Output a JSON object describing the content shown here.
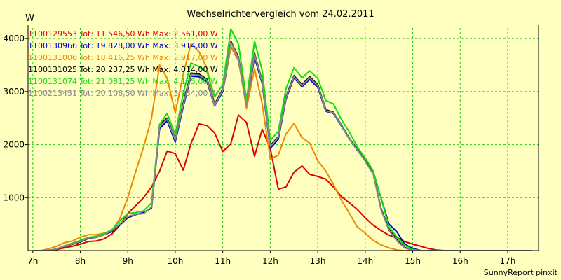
{
  "chart_data": {
    "type": "line",
    "title": "Wechselrichtervergleich vom 24.02.2011",
    "ylabel": "W",
    "footer": "SunnyReport pinxit",
    "xlim": [
      6.9,
      17.65
    ],
    "ylim": [
      0,
      4200
    ],
    "x_ticks": [
      {
        "value": 7,
        "label": "7h"
      },
      {
        "value": 8,
        "label": "8h"
      },
      {
        "value": 9,
        "label": "9h"
      },
      {
        "value": 10,
        "label": "10h"
      },
      {
        "value": 11,
        "label": "11h"
      },
      {
        "value": 12,
        "label": "12h"
      },
      {
        "value": 13,
        "label": "13h"
      },
      {
        "value": 14,
        "label": "14h"
      },
      {
        "value": 15,
        "label": "15h"
      },
      {
        "value": 16,
        "label": "16h"
      },
      {
        "value": 17,
        "label": "17h"
      }
    ],
    "y_ticks": [
      {
        "value": 1000,
        "label": "1000"
      },
      {
        "value": 2000,
        "label": "2000"
      },
      {
        "value": 3000,
        "label": "3000"
      },
      {
        "value": 4000,
        "label": "4000"
      }
    ],
    "x": [
      7.0,
      7.17,
      7.33,
      7.5,
      7.67,
      7.83,
      8.0,
      8.17,
      8.33,
      8.5,
      8.67,
      8.83,
      9.0,
      9.17,
      9.33,
      9.5,
      9.67,
      9.83,
      10.0,
      10.17,
      10.33,
      10.5,
      10.67,
      10.83,
      11.0,
      11.17,
      11.33,
      11.5,
      11.67,
      11.83,
      12.0,
      12.17,
      12.33,
      12.5,
      12.67,
      12.83,
      13.0,
      13.17,
      13.33,
      13.5,
      13.67,
      13.83,
      14.0,
      14.17,
      14.33,
      14.5,
      14.67,
      14.83,
      15.0,
      15.17,
      15.33,
      15.5,
      15.67,
      15.83,
      16.0,
      16.17,
      16.33,
      16.5,
      16.67,
      16.83,
      17.0,
      17.17,
      17.33,
      17.5
    ],
    "series": [
      {
        "name": "1100129553",
        "legend": "1100129553 Tot: 11.546,50 Wh Max: 2.561,00 W",
        "color": "#dd0000",
        "values": [
          0,
          0,
          0,
          20,
          50,
          80,
          120,
          170,
          180,
          220,
          320,
          480,
          700,
          850,
          1000,
          1200,
          1500,
          1880,
          1830,
          1520,
          2020,
          2390,
          2360,
          2220,
          1870,
          2020,
          2560,
          2420,
          1780,
          2290,
          1930,
          1160,
          1200,
          1480,
          1600,
          1440,
          1400,
          1350,
          1200,
          1020,
          900,
          780,
          620,
          480,
          380,
          290,
          250,
          170,
          120,
          80,
          40,
          10,
          0,
          0,
          0,
          0,
          0,
          0,
          0,
          0,
          0,
          0,
          0,
          0
        ]
      },
      {
        "name": "1100130966",
        "legend": "1100130966 Tot: 19.828,00 Wh Max: 3.914,00 W",
        "color": "#0000cc",
        "values": [
          0,
          0,
          0,
          30,
          80,
          120,
          160,
          230,
          250,
          300,
          360,
          480,
          620,
          680,
          720,
          800,
          2300,
          2450,
          2050,
          2720,
          3290,
          3280,
          3180,
          2730,
          3000,
          3850,
          3590,
          2730,
          3650,
          3150,
          1930,
          2100,
          2850,
          3260,
          3090,
          3230,
          3080,
          2630,
          2590,
          2350,
          2100,
          1900,
          1700,
          1480,
          1000,
          500,
          350,
          120,
          40,
          0,
          0,
          0,
          0,
          0,
          0,
          0,
          0,
          0,
          0,
          0,
          0,
          0,
          0,
          0
        ]
      },
      {
        "name": "1100131006",
        "legend": "1100131006 Tot: 18.416,25 Wh Max: 3.917,00 W",
        "color": "#ee8800",
        "values": [
          0,
          0,
          30,
          80,
          150,
          180,
          250,
          300,
          300,
          330,
          380,
          600,
          1000,
          1500,
          1950,
          2500,
          3500,
          3250,
          2600,
          3330,
          3900,
          3750,
          3440,
          2750,
          3030,
          3850,
          3600,
          2680,
          3430,
          2770,
          1730,
          1800,
          2200,
          2400,
          2130,
          2030,
          1700,
          1500,
          1250,
          950,
          700,
          450,
          330,
          190,
          110,
          50,
          10,
          0,
          0,
          0,
          0,
          0,
          0,
          0,
          0,
          0,
          0,
          0,
          0,
          0,
          0,
          0,
          0,
          0
        ]
      },
      {
        "name": "1100131025",
        "legend": "1100131025 Tot: 20.237,25 Wh Max: 4.014,00 W",
        "color": "#000000",
        "values": [
          0,
          0,
          0,
          30,
          80,
          120,
          170,
          240,
          250,
          300,
          380,
          500,
          640,
          690,
          700,
          820,
          2380,
          2500,
          2100,
          2790,
          3350,
          3330,
          3230,
          2760,
          3050,
          3950,
          3650,
          2770,
          3720,
          3200,
          1980,
          2150,
          2900,
          3300,
          3130,
          3280,
          3130,
          2660,
          2610,
          2370,
          2110,
          1920,
          1700,
          1450,
          800,
          400,
          200,
          60,
          0,
          0,
          0,
          0,
          0,
          0,
          0,
          0,
          0,
          0,
          0,
          0,
          0,
          0,
          0,
          0
        ]
      },
      {
        "name": "1100131074",
        "legend": "1100131074 Tot: 21.081,25 Wh Max: 4.185,00 W",
        "color": "#11dd11",
        "values": [
          0,
          0,
          0,
          30,
          90,
          140,
          190,
          250,
          270,
          320,
          400,
          560,
          700,
          720,
          750,
          900,
          2380,
          2590,
          2190,
          2970,
          3540,
          3470,
          3370,
          2900,
          3130,
          4180,
          3900,
          2850,
          3950,
          3400,
          2080,
          2250,
          3050,
          3450,
          3260,
          3390,
          3250,
          2830,
          2770,
          2470,
          2230,
          1960,
          1750,
          1500,
          1000,
          450,
          250,
          100,
          20,
          0,
          0,
          0,
          0,
          0,
          0,
          0,
          0,
          0,
          0,
          0,
          0,
          0,
          0,
          0
        ]
      },
      {
        "name": "1100213451",
        "legend": "1100213451 Tot: 20.106,50 Wh Max: 3.954,00 W",
        "color": "#888888",
        "values": [
          0,
          0,
          0,
          30,
          85,
          125,
          170,
          240,
          250,
          300,
          380,
          500,
          640,
          690,
          700,
          820,
          2350,
          2480,
          2090,
          2760,
          3320,
          3310,
          3210,
          2740,
          3030,
          3930,
          3630,
          2750,
          3700,
          3180,
          1960,
          2140,
          2880,
          3280,
          3110,
          3260,
          3110,
          2640,
          2600,
          2360,
          2100,
          1910,
          1690,
          1440,
          780,
          380,
          180,
          50,
          0,
          0,
          0,
          0,
          0,
          0,
          0,
          0,
          0,
          0,
          0,
          0,
          0,
          0,
          0,
          0
        ]
      }
    ]
  }
}
